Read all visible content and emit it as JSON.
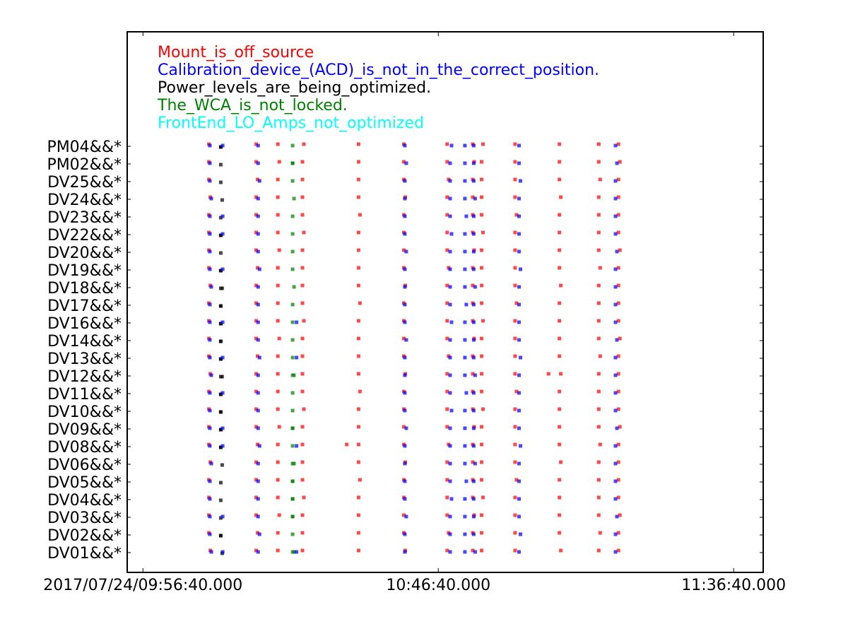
{
  "chart_data": {
    "type": "scatter",
    "title": "",
    "xlabel": "",
    "ylabel": "",
    "grid": false,
    "legend_placement": "top-left",
    "x_ticks": [
      "2017/07/24/09:56:40.000",
      "10:46:40.000",
      "11:36:40.000"
    ],
    "xlim": [
      "2017/07/24/09:54:00",
      "2017/07/24/11:41:40"
    ],
    "categories": [
      "DV01&&*",
      "DV02&&*",
      "DV03&&*",
      "DV04&&*",
      "DV05&&*",
      "DV06&&*",
      "DV08&&*",
      "DV09&&*",
      "DV10&&*",
      "DV11&&*",
      "DV12&&*",
      "DV13&&*",
      "DV14&&*",
      "DV16&&*",
      "DV17&&*",
      "DV18&&*",
      "DV19&&*",
      "DV20&&*",
      "DV22&&*",
      "DV23&&*",
      "DV24&&*",
      "DV25&&*",
      "PM02&&*",
      "PM04&&*"
    ],
    "series": [
      {
        "name": "Mount_is_off_source",
        "color": "#ff0000",
        "x_common": [
          "10:07:50",
          "10:15:50",
          "10:19:30",
          "10:23:40",
          "10:33:10",
          "10:40:50",
          "10:48:10",
          "10:52:30",
          "10:54:00",
          "10:59:40",
          "11:07:10",
          "11:13:50",
          "11:17:10"
        ]
      },
      {
        "name": "Calibration_device_(ACD)_is_not_in_the_correct_position.",
        "color": "#0000ff",
        "x_common": [
          "10:08:00",
          "10:16:10",
          "10:41:00",
          "10:48:40",
          "10:51:10",
          "10:52:40",
          "11:00:20",
          "11:16:40"
        ]
      },
      {
        "name": "Power_levels_are_being_optimized.",
        "color": "#000000",
        "x_common": [
          "10:09:50"
        ]
      },
      {
        "name": "The_WCA_is_not_locked.",
        "color": "#008000",
        "x_common": [
          "10:22:00"
        ]
      },
      {
        "name": "FrontEnd_LO_Amps_not_optimized",
        "color": "#00ffff",
        "x_common": []
      }
    ],
    "point_groups": [
      {
        "series": 2,
        "x": "10:09:50",
        "rows": [
          "PM04&&*",
          "DV22&&*",
          "DV19&&*",
          "DV18&&*",
          "DV17&&*",
          "DV16&&*",
          "DV14&&*",
          "DV13&&*",
          "DV12&&*",
          "DV11&&*",
          "DV10&&*",
          "DV09&&*",
          "DV08&&*",
          "DV02&&*"
        ]
      },
      {
        "series": 1,
        "x": "10:10:10",
        "rows": [
          "PM04&&*",
          "DV23&&*",
          "DV22&&*",
          "DV19&&*",
          "DV16&&*",
          "DV13&&*",
          "DV11&&*",
          "DV09&&*",
          "DV08&&*",
          "DV03&&*",
          "DV01&&*"
        ]
      },
      {
        "series": 3,
        "x": "10:22:00",
        "rows": [
          "PM02&&*",
          "DV12&&*",
          "DV09&&*",
          "DV06&&*",
          "DV05&&*",
          "DV04&&*",
          "DV03&&*",
          "DV01&&*"
        ]
      },
      {
        "series": 1,
        "x": "10:22:40",
        "rows": [
          "DV16&&*",
          "DV13&&*",
          "DV08&&*",
          "DV01&&*"
        ]
      },
      {
        "series": 0,
        "x": "10:31:10",
        "rows": [
          "DV08&&*"
        ]
      },
      {
        "series": 0,
        "x": "11:05:20",
        "rows": [
          "DV12&&*"
        ]
      }
    ]
  }
}
